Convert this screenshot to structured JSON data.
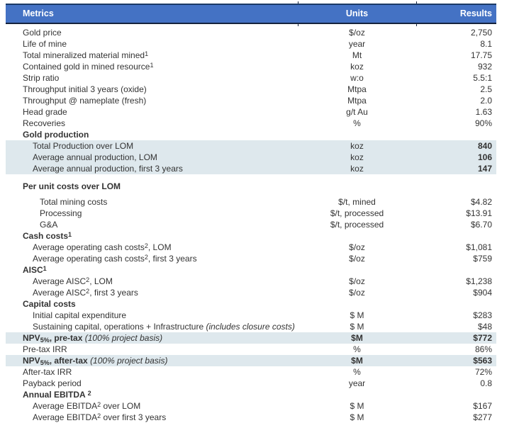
{
  "table": {
    "columns": {
      "metrics": "Metrics",
      "units": "Units",
      "results": "Results"
    },
    "colors": {
      "header_bg": "#4472C4",
      "header_text": "#FFFFFF",
      "border": "#15233D",
      "highlight_row_bg": "#DEE8ED",
      "body_text": "#333333"
    },
    "rows": [
      {
        "label": "Gold price",
        "unit": "$/oz",
        "result": "2,750",
        "indent": 0
      },
      {
        "label": "Life of mine",
        "unit": "year",
        "result": "8.1",
        "indent": 0
      },
      {
        "label": "Total mineralized material mined^1^",
        "unit": "Mt",
        "result": "17.75",
        "indent": 0
      },
      {
        "label": "Contained gold in mined resource^1^",
        "unit": "koz",
        "result": "932",
        "indent": 0
      },
      {
        "label": "Strip ratio",
        "unit": "w:o",
        "result": "5.5:1",
        "indent": 0
      },
      {
        "label": "Throughput initial 3 years (oxide)",
        "unit": "Mtpa",
        "result": "2.5",
        "indent": 0
      },
      {
        "label": "Throughput @ nameplate (fresh)",
        "unit": "Mtpa",
        "result": "2.0",
        "indent": 0
      },
      {
        "label": "Head grade",
        "unit": "g/t Au",
        "result": "1.63",
        "indent": 0
      },
      {
        "label": "Recoveries",
        "unit": "%",
        "result": "90%",
        "indent": 0
      },
      {
        "label": "Gold production",
        "unit": "",
        "result": "",
        "indent": 0,
        "section": true
      },
      {
        "label": "Total Production over LOM",
        "unit": "koz",
        "result": "840",
        "indent": 1,
        "highlight": true,
        "result_bold": true
      },
      {
        "label": "Average annual production, LOM",
        "unit": "koz",
        "result": "106",
        "indent": 1,
        "highlight": true,
        "result_bold": true
      },
      {
        "label": "Average annual production, first 3 years",
        "unit": "koz",
        "result": "147",
        "indent": 1,
        "highlight": true,
        "result_bold": true
      },
      {
        "label": "Per unit costs over LOM",
        "unit": "",
        "result": "",
        "indent": 0,
        "section": true,
        "gap_before": 9
      },
      {
        "label": "Total mining costs",
        "unit": "$/t, mined",
        "result": "$4.82",
        "indent": 2,
        "gap_before": 6
      },
      {
        "label": "Processing",
        "unit": "$/t, processed",
        "result": "$13.91",
        "indent": 2
      },
      {
        "label": "G&A",
        "unit": "$/t, processed",
        "result": "$6.70",
        "indent": 2
      },
      {
        "label": "Cash costs^1^",
        "unit": "",
        "result": "",
        "indent": 0,
        "section": true
      },
      {
        "label": "Average operating cash costs^2^, LOM",
        "unit": "$/oz",
        "result": "$1,081",
        "indent": 1
      },
      {
        "label": "Average operating cash costs^2^, first 3 years",
        "unit": "$/oz",
        "result": "$759",
        "indent": 1
      },
      {
        "label": "AISC^1^",
        "unit": "",
        "result": "",
        "indent": 0,
        "section": true
      },
      {
        "label": "Average AISC^2^, LOM",
        "unit": "$/oz",
        "result": "$1,238",
        "indent": 1
      },
      {
        "label": "Average AISC^2^, first 3 years",
        "unit": "$/oz",
        "result": "$904",
        "indent": 1
      },
      {
        "label": "Capital costs",
        "unit": "",
        "result": "",
        "indent": 0,
        "section": true
      },
      {
        "label": "Initial capital expenditure",
        "unit": "$ M",
        "result": "$283",
        "indent": 1
      },
      {
        "label": "Sustaining capital, operations + Infrastructure _(includes closure costs)_",
        "unit": "$ M",
        "result": "$48",
        "indent": 1
      },
      {
        "label": "NPV~5%~, pre-tax _(100% project basis)_",
        "unit": "$M",
        "result": "$772",
        "indent": 0,
        "highlight": true,
        "bold": true,
        "result_bold": true
      },
      {
        "label": "Pre-tax IRR",
        "unit": "%",
        "result": "86%",
        "indent": 0
      },
      {
        "label": "NPV~5%~, after-tax _(100% project basis)_",
        "unit": "$M",
        "result": "$563",
        "indent": 0,
        "highlight": true,
        "bold": true,
        "result_bold": true
      },
      {
        "label": "After-tax IRR",
        "unit": "%",
        "result": "72%",
        "indent": 0
      },
      {
        "label": "Payback period",
        "unit": "year",
        "result": "0.8",
        "indent": 0
      },
      {
        "label": "Annual EBITDA ^2^",
        "unit": "",
        "result": "",
        "indent": 0,
        "section": true
      },
      {
        "label": "Average EBITDA^2^ over LOM",
        "unit": "$ M",
        "result": "$167",
        "indent": 1
      },
      {
        "label": "Average EBITDA^2^ over first 3 years",
        "unit": "$ M",
        "result": "$277",
        "indent": 1
      }
    ]
  }
}
